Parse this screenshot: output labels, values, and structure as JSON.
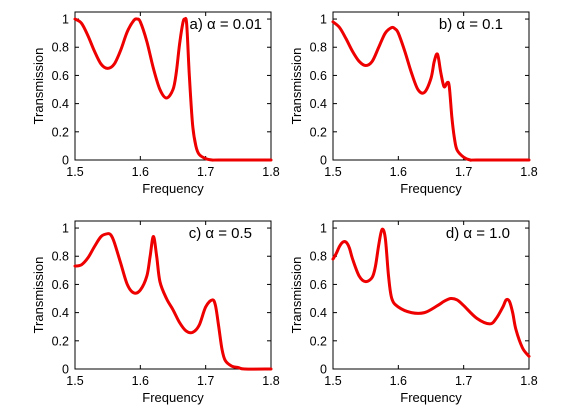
{
  "figure": {
    "background": "#ffffff",
    "curve_color": "#ee0000",
    "axis_color": "#000000"
  },
  "chart_data": [
    {
      "type": "line",
      "title": "a) α = 0.01",
      "xlabel": "Frequency",
      "ylabel": "Transmission",
      "xlim": [
        1.5,
        1.8
      ],
      "ylim": [
        0,
        1.05
      ],
      "x_ticks": [
        "1.5",
        "1.6",
        "1.7",
        "1.8"
      ],
      "y_ticks": [
        "0",
        "0.2",
        "0.4",
        "0.6",
        "0.8",
        "1"
      ],
      "grid": false,
      "series": [
        {
          "x": [
            1.5,
            1.51,
            1.52,
            1.53,
            1.54,
            1.55,
            1.56,
            1.57,
            1.58,
            1.59,
            1.595,
            1.6,
            1.61,
            1.62,
            1.63,
            1.64,
            1.65,
            1.655,
            1.66,
            1.665,
            1.668,
            1.671,
            1.675,
            1.68,
            1.685,
            1.69,
            1.7,
            1.71,
            1.72,
            1.8
          ],
          "y": [
            1.0,
            0.97,
            0.88,
            0.77,
            0.68,
            0.65,
            0.68,
            0.78,
            0.91,
            0.99,
            1.0,
            0.98,
            0.84,
            0.65,
            0.5,
            0.44,
            0.5,
            0.62,
            0.82,
            0.97,
            1.0,
            0.96,
            0.6,
            0.25,
            0.1,
            0.04,
            0.01,
            0.0,
            0.0,
            0.0
          ]
        }
      ]
    },
    {
      "type": "line",
      "title": "b) α = 0.1",
      "xlabel": "Frequency",
      "ylabel": "Transmission",
      "xlim": [
        1.5,
        1.8
      ],
      "ylim": [
        0,
        1.05
      ],
      "x_ticks": [
        "1.5",
        "1.6",
        "1.7",
        "1.8"
      ],
      "y_ticks": [
        "0",
        "0.2",
        "0.4",
        "0.6",
        "0.8",
        "1"
      ],
      "grid": false,
      "series": [
        {
          "x": [
            1.5,
            1.51,
            1.52,
            1.53,
            1.54,
            1.55,
            1.56,
            1.57,
            1.58,
            1.59,
            1.595,
            1.6,
            1.61,
            1.62,
            1.63,
            1.64,
            1.65,
            1.655,
            1.66,
            1.665,
            1.67,
            1.675,
            1.678,
            1.682,
            1.686,
            1.69,
            1.7,
            1.71,
            1.72,
            1.8
          ],
          "y": [
            0.98,
            0.94,
            0.86,
            0.77,
            0.7,
            0.67,
            0.7,
            0.8,
            0.9,
            0.94,
            0.93,
            0.9,
            0.77,
            0.62,
            0.5,
            0.48,
            0.58,
            0.7,
            0.75,
            0.62,
            0.52,
            0.55,
            0.52,
            0.3,
            0.15,
            0.07,
            0.02,
            0.0,
            0.0,
            0.0
          ]
        }
      ]
    },
    {
      "type": "line",
      "title": "c) α = 0.5",
      "xlabel": "Frequency",
      "ylabel": "Transmission",
      "xlim": [
        1.5,
        1.8
      ],
      "ylim": [
        0,
        1.05
      ],
      "x_ticks": [
        "1.5",
        "1.6",
        "1.7",
        "1.8"
      ],
      "y_ticks": [
        "0",
        "0.2",
        "0.4",
        "0.6",
        "0.8",
        "1"
      ],
      "grid": false,
      "series": [
        {
          "x": [
            1.5,
            1.51,
            1.52,
            1.53,
            1.54,
            1.55,
            1.555,
            1.56,
            1.57,
            1.58,
            1.59,
            1.6,
            1.61,
            1.615,
            1.62,
            1.625,
            1.63,
            1.64,
            1.65,
            1.66,
            1.67,
            1.68,
            1.69,
            1.7,
            1.71,
            1.715,
            1.72,
            1.725,
            1.73,
            1.74,
            1.75,
            1.76,
            1.8
          ],
          "y": [
            0.73,
            0.74,
            0.79,
            0.87,
            0.94,
            0.96,
            0.95,
            0.9,
            0.75,
            0.6,
            0.54,
            0.56,
            0.66,
            0.8,
            0.94,
            0.8,
            0.62,
            0.5,
            0.42,
            0.33,
            0.27,
            0.26,
            0.31,
            0.44,
            0.49,
            0.45,
            0.3,
            0.14,
            0.06,
            0.02,
            0.01,
            0.0,
            0.0
          ]
        }
      ]
    },
    {
      "type": "line",
      "title": "d) α = 1.0",
      "xlabel": "Frequency",
      "ylabel": "Transmission",
      "xlim": [
        1.5,
        1.8
      ],
      "ylim": [
        0,
        1.05
      ],
      "x_ticks": [
        "1.5",
        "1.6",
        "1.7",
        "1.8"
      ],
      "y_ticks": [
        "0",
        "0.2",
        "0.4",
        "0.6",
        "0.8",
        "1"
      ],
      "grid": false,
      "series": [
        {
          "x": [
            1.5,
            1.505,
            1.51,
            1.515,
            1.52,
            1.525,
            1.53,
            1.54,
            1.55,
            1.56,
            1.565,
            1.57,
            1.575,
            1.58,
            1.585,
            1.59,
            1.6,
            1.62,
            1.64,
            1.66,
            1.67,
            1.68,
            1.69,
            1.7,
            1.72,
            1.74,
            1.75,
            1.76,
            1.765,
            1.77,
            1.775,
            1.78,
            1.79,
            1.8
          ],
          "y": [
            0.78,
            0.82,
            0.87,
            0.9,
            0.9,
            0.86,
            0.78,
            0.66,
            0.62,
            0.65,
            0.73,
            0.88,
            0.99,
            0.93,
            0.66,
            0.5,
            0.44,
            0.4,
            0.4,
            0.45,
            0.48,
            0.5,
            0.49,
            0.45,
            0.36,
            0.32,
            0.36,
            0.44,
            0.49,
            0.48,
            0.4,
            0.28,
            0.15,
            0.09
          ]
        }
      ]
    }
  ]
}
